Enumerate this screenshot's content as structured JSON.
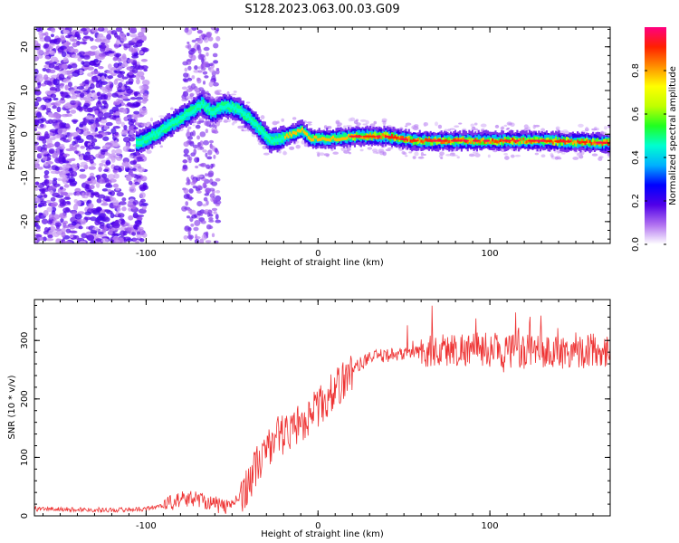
{
  "title": "S128.2023.063.00.03.G09",
  "chart_data": [
    {
      "type": "heatmap",
      "xlabel": "Height of straight line (km)",
      "ylabel": "Frequency (Hz)",
      "xlim": [
        -165,
        170
      ],
      "ylim": [
        -25,
        24.5
      ],
      "x_ticks": [
        -100,
        0,
        100
      ],
      "y_ticks": [
        -20,
        -10,
        0,
        10,
        20
      ],
      "ridge": {
        "x": [
          -105,
          -95,
          -85,
          -75,
          -68,
          -62,
          -55,
          -48,
          -40,
          -35,
          -28,
          -22,
          -16,
          -10,
          -5,
          0,
          5,
          10,
          20,
          40,
          55,
          70,
          100,
          130,
          170
        ],
        "y": [
          -2,
          0,
          2.5,
          5,
          7,
          5,
          6.5,
          6,
          3.5,
          1.5,
          -1.5,
          -1,
          0,
          1,
          -1,
          -1,
          -1,
          -1,
          -0.5,
          -0.5,
          -1.5,
          -1.5,
          -1.5,
          -1.5,
          -2
        ]
      },
      "colorbar": {
        "label": "Normalized spectral amplitude",
        "range": [
          0,
          1
        ],
        "ticks": [
          0.0,
          0.2,
          0.4,
          0.6,
          0.8
        ],
        "colors": [
          "#ffffff",
          "#b070f0",
          "#5000e8",
          "#0000ff",
          "#00b0ff",
          "#00ffd0",
          "#20ff20",
          "#c0ff00",
          "#ffff00",
          "#ff9000",
          "#ff2000",
          "#ff0080"
        ]
      }
    },
    {
      "type": "line",
      "xlabel": "Height of straight line (km)",
      "ylabel": "SNR (10 * v/v)",
      "xlim": [
        -165,
        170
      ],
      "ylim": [
        0,
        370
      ],
      "x_ticks": [
        -100,
        0,
        100
      ],
      "y_ticks": [
        0,
        100,
        200,
        300
      ],
      "series": [
        {
          "color": "#ee3333",
          "trend_x": [
            -165,
            -120,
            -100,
            -90,
            -80,
            -70,
            -60,
            -55,
            -50,
            -45,
            -40,
            -35,
            -30,
            -25,
            -20,
            -10,
            0,
            10,
            20,
            30,
            40,
            60,
            80,
            100,
            120,
            140,
            170
          ],
          "trend_y": [
            12,
            10,
            12,
            18,
            28,
            30,
            20,
            15,
            20,
            35,
            60,
            90,
            110,
            135,
            140,
            160,
            185,
            215,
            250,
            270,
            275,
            280,
            285,
            285,
            280,
            280,
            285
          ]
        }
      ]
    }
  ]
}
